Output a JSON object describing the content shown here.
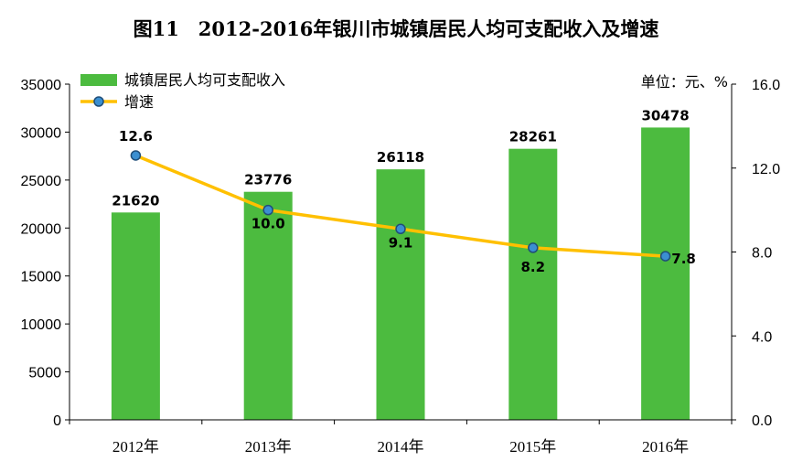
{
  "chart_data": {
    "type": "bar+line",
    "title": "图11　2012-2016年银川市城镇居民人均可支配收入及增速",
    "unit_label": "单位：元、%",
    "categories": [
      "2012年",
      "2013年",
      "2014年",
      "2015年",
      "2016年"
    ],
    "series": [
      {
        "name": "城镇居民人均可支配收入",
        "type": "bar",
        "axis": "left",
        "values": [
          21620,
          23776,
          26118,
          28261,
          30478
        ],
        "labels": [
          "21620",
          "23776",
          "26118",
          "28261",
          "30478"
        ],
        "color": "#4cbb3f"
      },
      {
        "name": "增速",
        "type": "line",
        "axis": "right",
        "values": [
          12.6,
          10.0,
          9.1,
          8.2,
          7.8
        ],
        "labels": [
          "12.6",
          "10.0",
          "9.1",
          "8.2",
          "7.8"
        ],
        "color": "#ffc000",
        "marker_color": "#3b8fd1"
      }
    ],
    "y_left": {
      "range": [
        0,
        35000
      ],
      "ticks": [
        "0",
        "5000",
        "10000",
        "15000",
        "20000",
        "25000",
        "30000",
        "35000"
      ]
    },
    "y_right": {
      "range": [
        0,
        16
      ],
      "ticks": [
        "0.0",
        "4.0",
        "8.0",
        "12.0",
        "16.0"
      ]
    },
    "legend": "top-left",
    "grid": false
  }
}
